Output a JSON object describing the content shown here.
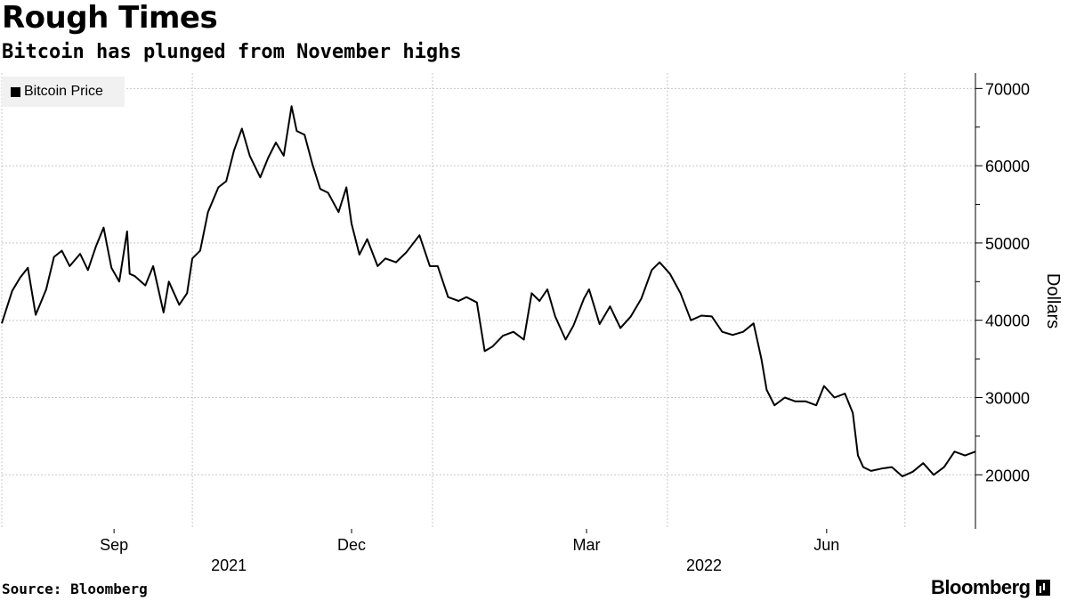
{
  "header": {
    "title": "Rough Times",
    "subtitle": "Bitcoin has plunged from November highs"
  },
  "footer": {
    "source": "Source: Bloomberg",
    "brand": "Bloomberg"
  },
  "chart_data": {
    "type": "line",
    "title": "Rough Times",
    "subtitle": "Bitcoin has plunged from November highs",
    "ylabel": "Dollars",
    "xlabel": "",
    "ylim": [
      13000,
      72000
    ],
    "yticks": [
      20000,
      30000,
      40000,
      50000,
      60000,
      70000
    ],
    "xlim": [
      "2021-07-20",
      "2022-07-28"
    ],
    "xticks": [
      {
        "date": "2021-09-01",
        "label": "Sep"
      },
      {
        "date": "2021-12-01",
        "label": "Dec"
      },
      {
        "date": "2022-03-01",
        "label": "Mar"
      },
      {
        "date": "2022-06-01",
        "label": "Jun"
      }
    ],
    "year_labels": [
      {
        "date": "2021-10-15",
        "label": "2021"
      },
      {
        "date": "2022-04-15",
        "label": "2022"
      }
    ],
    "vertical_gridlines": [
      "2021-07-20",
      "2021-10-01",
      "2022-01-01",
      "2022-04-01",
      "2022-07-01"
    ],
    "grid": true,
    "legend": "top-left",
    "line_color": "#000000",
    "series": [
      {
        "name": "Bitcoin Price",
        "x": [
          "2021-07-20",
          "2021-07-24",
          "2021-07-27",
          "2021-07-30",
          "2021-08-02",
          "2021-08-06",
          "2021-08-09",
          "2021-08-12",
          "2021-08-15",
          "2021-08-19",
          "2021-08-22",
          "2021-08-25",
          "2021-08-28",
          "2021-08-31",
          "2021-09-03",
          "2021-09-06",
          "2021-09-07",
          "2021-09-09",
          "2021-09-13",
          "2021-09-16",
          "2021-09-20",
          "2021-09-22",
          "2021-09-26",
          "2021-09-29",
          "2021-10-01",
          "2021-10-04",
          "2021-10-07",
          "2021-10-11",
          "2021-10-14",
          "2021-10-17",
          "2021-10-20",
          "2021-10-23",
          "2021-10-27",
          "2021-10-30",
          "2021-11-02",
          "2021-11-05",
          "2021-11-08",
          "2021-11-10",
          "2021-11-13",
          "2021-11-16",
          "2021-11-19",
          "2021-11-22",
          "2021-11-26",
          "2021-11-29",
          "2021-12-01",
          "2021-12-04",
          "2021-12-07",
          "2021-12-11",
          "2021-12-14",
          "2021-12-18",
          "2021-12-22",
          "2021-12-27",
          "2021-12-31",
          "2022-01-03",
          "2022-01-07",
          "2022-01-11",
          "2022-01-14",
          "2022-01-18",
          "2022-01-21",
          "2022-01-24",
          "2022-01-28",
          "2022-02-01",
          "2022-02-05",
          "2022-02-08",
          "2022-02-11",
          "2022-02-14",
          "2022-02-17",
          "2022-02-21",
          "2022-02-24",
          "2022-02-28",
          "2022-03-02",
          "2022-03-06",
          "2022-03-10",
          "2022-03-14",
          "2022-03-18",
          "2022-03-22",
          "2022-03-26",
          "2022-03-29",
          "2022-04-02",
          "2022-04-06",
          "2022-04-10",
          "2022-04-14",
          "2022-04-18",
          "2022-04-22",
          "2022-04-26",
          "2022-04-30",
          "2022-05-04",
          "2022-05-07",
          "2022-05-09",
          "2022-05-12",
          "2022-05-16",
          "2022-05-20",
          "2022-05-24",
          "2022-05-28",
          "2022-05-31",
          "2022-06-04",
          "2022-06-08",
          "2022-06-11",
          "2022-06-13",
          "2022-06-15",
          "2022-06-18",
          "2022-06-22",
          "2022-06-26",
          "2022-06-30",
          "2022-07-04",
          "2022-07-08",
          "2022-07-12",
          "2022-07-16",
          "2022-07-20",
          "2022-07-24",
          "2022-07-28"
        ],
        "values": [
          39600,
          43800,
          45500,
          46800,
          40700,
          44000,
          48200,
          49000,
          47000,
          48600,
          46500,
          49500,
          52000,
          46800,
          45000,
          51500,
          46000,
          45700,
          44500,
          47000,
          41000,
          45000,
          42000,
          43500,
          48000,
          49000,
          54000,
          57200,
          58000,
          62000,
          64800,
          61300,
          58500,
          61000,
          63000,
          61300,
          67700,
          64500,
          64000,
          60200,
          57000,
          56500,
          54000,
          57200,
          52500,
          48500,
          50500,
          47000,
          48000,
          47500,
          48800,
          51000,
          47000,
          47000,
          43000,
          42500,
          43000,
          42300,
          36000,
          36600,
          38000,
          38500,
          37500,
          43500,
          42500,
          44000,
          40500,
          37500,
          39300,
          42800,
          44000,
          39500,
          41800,
          39000,
          40500,
          42800,
          46500,
          47500,
          46000,
          43500,
          40000,
          40600,
          40500,
          38500,
          38100,
          38500,
          39600,
          35000,
          31000,
          29000,
          30000,
          29500,
          29500,
          29000,
          31500,
          30000,
          30500,
          28000,
          22500,
          21000,
          20500,
          20800,
          21000,
          19800,
          20400,
          21500,
          20000,
          21000,
          23000,
          22500,
          23000
        ]
      }
    ]
  }
}
